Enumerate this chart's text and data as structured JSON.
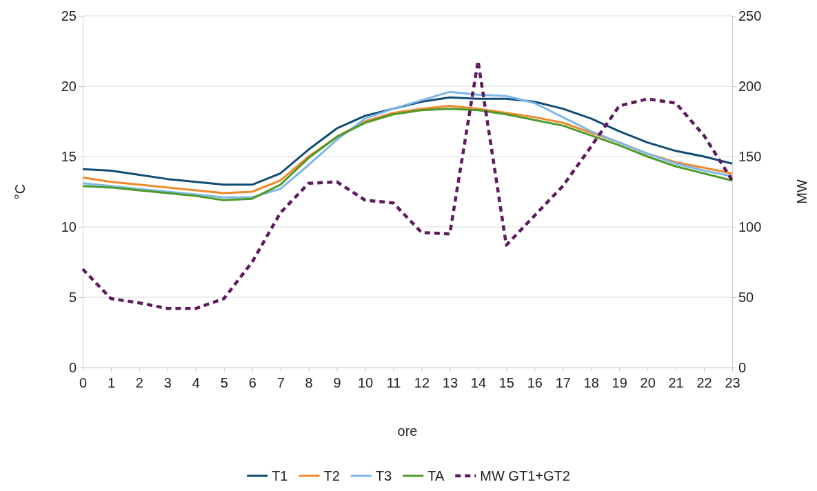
{
  "chart_data": {
    "type": "line",
    "xlabel": "ore",
    "ylabel": "°C",
    "y2label": "MW",
    "x": [
      0,
      1,
      2,
      3,
      4,
      5,
      6,
      7,
      8,
      9,
      10,
      11,
      12,
      13,
      14,
      15,
      16,
      17,
      18,
      19,
      20,
      21,
      22,
      23
    ],
    "xlim": [
      0,
      23
    ],
    "xticks": [
      0,
      1,
      2,
      3,
      4,
      5,
      6,
      7,
      8,
      9,
      10,
      11,
      12,
      13,
      14,
      15,
      16,
      17,
      18,
      19,
      20,
      21,
      22,
      23
    ],
    "ylim": [
      0,
      25
    ],
    "yticks": [
      0,
      5,
      10,
      15,
      20,
      25
    ],
    "y2lim": [
      0,
      250
    ],
    "y2ticks": [
      0,
      50,
      100,
      150,
      200,
      250
    ],
    "grid": "y",
    "legend": "bottom",
    "marker": "none",
    "series": [
      {
        "name": "T1",
        "color": "#0f4c73",
        "values": [
          14.1,
          14.0,
          13.7,
          13.4,
          13.2,
          13.0,
          13.0,
          13.8,
          15.5,
          17.0,
          17.9,
          18.4,
          18.9,
          19.2,
          19.1,
          19.1,
          18.9,
          18.4,
          17.7,
          16.8,
          16.0,
          15.4,
          15.0,
          14.5
        ]
      },
      {
        "name": "T2",
        "color": "#f0882a",
        "values": [
          13.5,
          13.2,
          13.0,
          12.8,
          12.6,
          12.4,
          12.5,
          13.3,
          15.0,
          16.4,
          17.5,
          18.1,
          18.4,
          18.6,
          18.4,
          18.1,
          17.8,
          17.4,
          16.7,
          16.0,
          15.2,
          14.6,
          14.2,
          13.8
        ]
      },
      {
        "name": "T3",
        "color": "#7cb7e8",
        "values": [
          13.1,
          12.9,
          12.7,
          12.5,
          12.3,
          12.1,
          12.1,
          12.7,
          14.4,
          16.2,
          17.7,
          18.4,
          19.0,
          19.6,
          19.4,
          19.3,
          18.8,
          17.8,
          16.8,
          16.0,
          15.2,
          14.5,
          14.0,
          13.6
        ]
      },
      {
        "name": "TA",
        "color": "#4c9a2a",
        "values": [
          12.9,
          12.8,
          12.6,
          12.4,
          12.2,
          11.9,
          12.0,
          13.0,
          14.9,
          16.4,
          17.4,
          18.0,
          18.3,
          18.4,
          18.3,
          18.0,
          17.6,
          17.2,
          16.5,
          15.8,
          15.0,
          14.3,
          13.8,
          13.3
        ]
      },
      {
        "name": "MW GT1+GT2",
        "color": "#5e1a5e",
        "axis": "y2",
        "line_style": "dashed",
        "values": [
          70,
          49,
          46,
          42,
          42,
          49,
          75,
          110,
          131,
          132,
          119,
          117,
          96,
          95,
          218,
          87,
          108,
          129,
          157,
          186,
          191,
          188,
          165,
          133
        ]
      }
    ]
  }
}
